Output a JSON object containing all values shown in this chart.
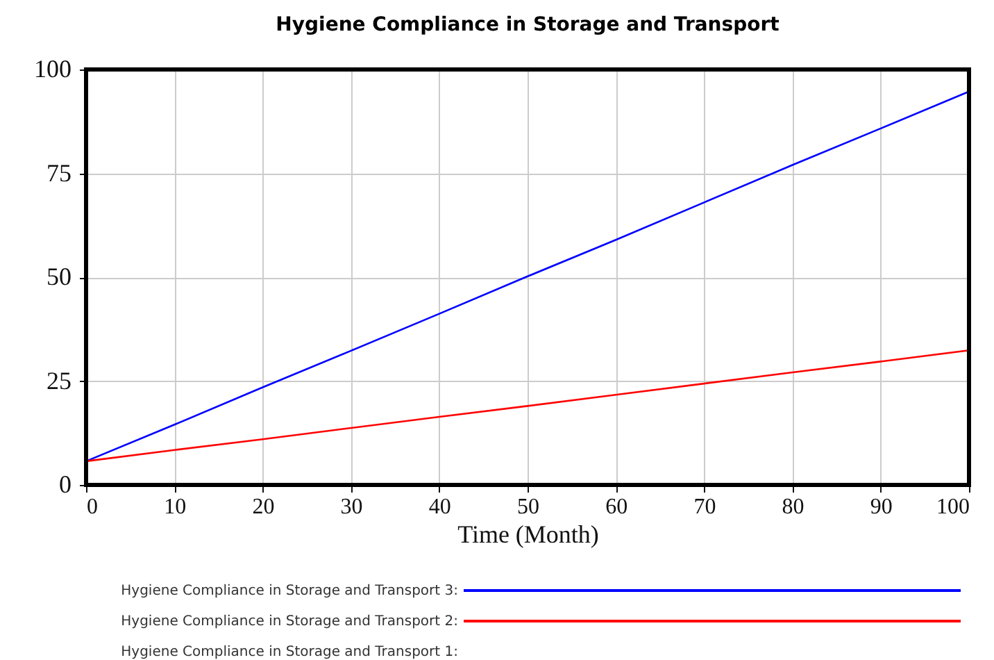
{
  "chart_data": {
    "type": "line",
    "title": "Hygiene Compliance in Storage and Transport",
    "xlabel": "Time (Month)",
    "x": [
      0,
      10,
      20,
      30,
      40,
      50,
      60,
      70,
      80,
      90,
      100
    ],
    "series": [
      {
        "name": "Hygiene Compliance in Storage and Transport 3:",
        "color": "#0000ff",
        "values": [
          5.7,
          14.5,
          23.5,
          32.3,
          41.2,
          50.2,
          59.0,
          68.0,
          77.0,
          85.8,
          94.7
        ]
      },
      {
        "name": "Hygiene Compliance in Storage and Transport 2:",
        "color": "#ff0000",
        "values": [
          5.7,
          8.4,
          11.0,
          13.7,
          16.4,
          19.0,
          21.7,
          24.4,
          27.1,
          29.7,
          32.4
        ]
      },
      {
        "name": "Hygiene Compliance in Storage and Transport 1:",
        "values": [
          null,
          null,
          null,
          null,
          null,
          null,
          null,
          null,
          null,
          null,
          null
        ]
      }
    ],
    "xlim": [
      0,
      100
    ],
    "xticks": [
      0,
      10,
      20,
      30,
      40,
      50,
      60,
      70,
      80,
      90,
      100
    ],
    "ylim": [
      0,
      100
    ],
    "yticks": [
      0,
      25,
      50,
      75,
      100
    ],
    "grid": true,
    "legend": "bottom",
    "marker": "none",
    "line_style": "solid"
  }
}
